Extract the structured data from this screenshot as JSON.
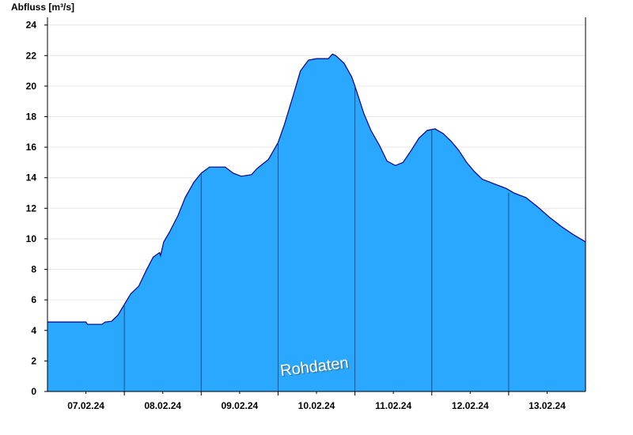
{
  "chart_data": {
    "type": "area",
    "y_label": "Abfluss [m³/s]",
    "annotation": "Rohdaten",
    "x": [
      0,
      12,
      12.5,
      17,
      18,
      20,
      22,
      24,
      26,
      28.5,
      31,
      33,
      35,
      35.3,
      36.3,
      38,
      40.7,
      43,
      45.7,
      48,
      50.6,
      55.5,
      58,
      60.5,
      63.7,
      65.4,
      69,
      72,
      74,
      76.6,
      79,
      81.5,
      84,
      87.7,
      89,
      90,
      92.6,
      95,
      96,
      98.8,
      101,
      103.7,
      106,
      108.6,
      111,
      113.6,
      116,
      118.6,
      121,
      123.5,
      126,
      128.4,
      130.9,
      133.3,
      135.8,
      139.5,
      143.2,
      145.7,
      149.4,
      153,
      156.8,
      160.5,
      164,
      168
    ],
    "values": [
      4.55,
      4.55,
      4.4,
      4.4,
      4.55,
      4.6,
      5.0,
      5.7,
      6.4,
      6.9,
      8.0,
      8.8,
      9.1,
      8.9,
      9.8,
      10.4,
      11.5,
      12.7,
      13.7,
      14.3,
      14.7,
      14.7,
      14.3,
      14.1,
      14.2,
      14.6,
      15.2,
      16.3,
      17.5,
      19.3,
      21.0,
      21.7,
      21.8,
      21.8,
      22.1,
      22.0,
      21.5,
      20.6,
      20.0,
      18.2,
      17.1,
      16.1,
      15.1,
      14.8,
      15.0,
      15.8,
      16.6,
      17.1,
      17.2,
      16.9,
      16.4,
      15.8,
      15.0,
      14.4,
      13.9,
      13.6,
      13.3,
      13.0,
      12.7,
      12.1,
      11.4,
      10.8,
      10.3,
      9.8
    ],
    "color": "#2aa8ff",
    "line_color": "#00008b",
    "xlim": [
      0,
      168
    ],
    "xticks": [
      {
        "value": 12,
        "label": "07.02.24"
      },
      {
        "value": 36,
        "label": "08.02.24"
      },
      {
        "value": 60,
        "label": "09.02.24"
      },
      {
        "value": 84,
        "label": "10.02.24"
      },
      {
        "value": 108,
        "label": "11.02.24"
      },
      {
        "value": 132,
        "label": "12.02.24"
      },
      {
        "value": 156,
        "label": "13.02.24"
      }
    ],
    "day_lines": [
      24,
      48,
      72,
      96,
      120,
      144
    ],
    "ylim": [
      0,
      24.5
    ],
    "yticks": [
      0,
      2,
      4,
      6,
      8,
      10,
      12,
      14,
      16,
      18,
      20,
      22,
      24
    ],
    "grid": true
  }
}
